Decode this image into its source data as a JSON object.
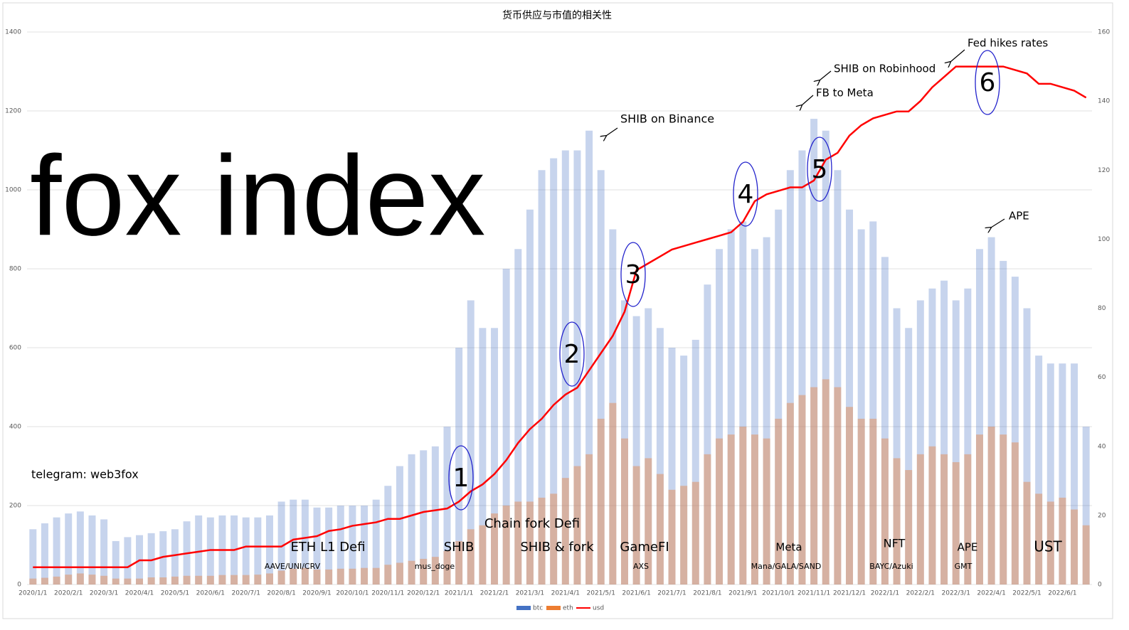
{
  "chart_data": {
    "type": "bar",
    "title": "货币供应与市值的相关性",
    "categories": [
      "2020/1/1",
      null,
      null,
      "2020/2/1",
      null,
      null,
      "2020/3/1",
      null,
      null,
      "2020/4/1",
      null,
      null,
      "2020/5/1",
      null,
      null,
      "2020/6/1",
      null,
      null,
      "2020/7/1",
      null,
      null,
      "2020/8/1",
      null,
      null,
      "2020/9/1",
      null,
      null,
      "2020/10/1",
      null,
      null,
      "2020/11/1",
      null,
      null,
      "2020/12/1",
      null,
      null,
      "2021/1/1",
      null,
      null,
      "2021/2/1",
      null,
      null,
      "2021/3/1",
      null,
      null,
      "2021/4/1",
      null,
      null,
      "2021/5/1",
      null,
      null,
      "2021/6/1",
      null,
      null,
      "2021/7/1",
      null,
      null,
      "2021/8/1",
      null,
      null,
      "2021/9/1",
      null,
      null,
      "2021/10/1",
      null,
      null,
      "2021/11/1",
      null,
      null,
      "2021/12/1",
      null,
      null,
      "2022/1/1",
      null,
      null,
      "2022/2/1",
      null,
      null,
      "2022/3/1",
      null,
      null,
      "2022/4/1",
      null,
      null,
      "2022/5/1",
      null,
      null,
      "2022/6/1",
      null,
      null
    ],
    "series": [
      {
        "name": "btc",
        "color": "#4472c4",
        "values": [
          140,
          155,
          170,
          180,
          185,
          175,
          165,
          110,
          120,
          125,
          130,
          135,
          140,
          160,
          175,
          170,
          175,
          175,
          170,
          170,
          175,
          210,
          215,
          215,
          195,
          195,
          200,
          200,
          200,
          215,
          250,
          300,
          330,
          340,
          350,
          400,
          600,
          720,
          650,
          650,
          800,
          850,
          950,
          1050,
          1080,
          1100,
          1100,
          1150,
          1050,
          900,
          720,
          680,
          700,
          650,
          600,
          580,
          620,
          760,
          850,
          900,
          920,
          850,
          880,
          950,
          1050,
          1100,
          1180,
          1150,
          1050,
          950,
          900,
          920,
          830,
          700,
          650,
          720,
          750,
          770,
          720,
          750,
          850,
          880,
          820,
          780,
          700,
          580,
          560,
          560,
          560,
          400
        ]
      },
      {
        "name": "eth",
        "color": "#ed7d31",
        "values": [
          15,
          17,
          20,
          25,
          28,
          25,
          22,
          15,
          15,
          15,
          18,
          18,
          20,
          22,
          22,
          22,
          24,
          24,
          24,
          25,
          28,
          35,
          40,
          42,
          38,
          38,
          40,
          40,
          42,
          42,
          50,
          55,
          60,
          65,
          70,
          85,
          110,
          140,
          150,
          180,
          200,
          210,
          210,
          220,
          230,
          270,
          300,
          330,
          420,
          460,
          370,
          300,
          320,
          280,
          240,
          250,
          260,
          330,
          370,
          380,
          400,
          380,
          370,
          420,
          460,
          480,
          500,
          520,
          500,
          450,
          420,
          420,
          370,
          320,
          290,
          330,
          350,
          330,
          310,
          330,
          380,
          400,
          380,
          360,
          260,
          230,
          210,
          220,
          190,
          150
        ]
      },
      {
        "name": "usd",
        "color": "#ff0000",
        "axis": "y2",
        "type": "line",
        "values": [
          5,
          5,
          5,
          5,
          5,
          5,
          5,
          5,
          5,
          7,
          7,
          8,
          8.5,
          9,
          9.5,
          10,
          10,
          10,
          11,
          11,
          11,
          11,
          13,
          13.5,
          14,
          15.5,
          16,
          17,
          17.5,
          18,
          19,
          19,
          20,
          21,
          21.5,
          22,
          24,
          27,
          29,
          32,
          36,
          41,
          45,
          48,
          52,
          55,
          57,
          62,
          67,
          72,
          79,
          91,
          93,
          95,
          97,
          98,
          99,
          100,
          101,
          102,
          105,
          111,
          113,
          114,
          115,
          115,
          117,
          123,
          125,
          130,
          133,
          135,
          136,
          137,
          137,
          140,
          144,
          147,
          150,
          150,
          150,
          150,
          150,
          149,
          148,
          145,
          145,
          144,
          143,
          141
        ]
      }
    ],
    "ylim": [
      0,
      1400
    ],
    "yticks": [
      0,
      200,
      400,
      600,
      800,
      1000,
      1200,
      1400
    ],
    "y2lim": [
      0,
      160
    ],
    "y2ticks": [
      0,
      20,
      40,
      60,
      80,
      100,
      120,
      140,
      160
    ],
    "grid": true,
    "legend": "bottom",
    "watermark": "fox index",
    "contact": "telegram: web3fox",
    "annotations": [
      "SHIB on Binance",
      "SHIB on Robinhood",
      "FB to Meta",
      "Fed hikes rates",
      "APE",
      "ETH L1 Defi",
      "SHIB",
      "Chain fork Defi",
      "SHIB & fork",
      "GameFI",
      "Meta",
      "NFT",
      "APE",
      "UST",
      "AAVE/UNI/CRV",
      "mus_doge",
      "AXS",
      "Mana/GALA/SAND",
      "BAYC/Azuki",
      "GMT"
    ],
    "phases": [
      "1",
      "2",
      "3",
      "4",
      "5",
      "6"
    ]
  }
}
